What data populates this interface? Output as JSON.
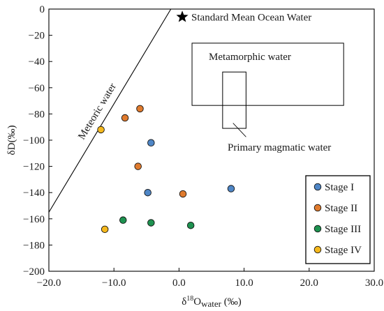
{
  "chart_data": {
    "type": "scatter",
    "xlim": [
      -20,
      30
    ],
    "ylim": [
      -200,
      0
    ],
    "x_ticks": [
      -20,
      -10,
      0,
      10,
      20,
      30
    ],
    "x_tick_labels": [
      "−20.0",
      "−10.0",
      "0.0",
      "10.0",
      "20.0",
      "30.0"
    ],
    "y_ticks": [
      0,
      -20,
      -40,
      -60,
      -80,
      -100,
      -120,
      -140,
      -160,
      -180,
      -200
    ],
    "y_tick_labels": [
      "0",
      "−20",
      "−40",
      "−60",
      "−80",
      "−100",
      "−120",
      "−140",
      "−160",
      "−180",
      "−200"
    ],
    "xlabel": {
      "prefix": "δ",
      "sup": "18",
      "main": "O",
      "sub": "water",
      "suffix": " (‰)"
    },
    "ylabel": "δD(‰)",
    "grid": false,
    "legend_position": "bottom-right",
    "series": [
      {
        "name": "Stage I",
        "color": "#4f86c6",
        "points": [
          {
            "x": -4.3,
            "y": -102
          },
          {
            "x": -4.8,
            "y": -140
          },
          {
            "x": 8.0,
            "y": -137
          }
        ]
      },
      {
        "name": "Stage II",
        "color": "#e07b2e",
        "points": [
          {
            "x": -8.3,
            "y": -83
          },
          {
            "x": -6.0,
            "y": -76
          },
          {
            "x": -6.3,
            "y": -120
          },
          {
            "x": 0.6,
            "y": -141
          }
        ]
      },
      {
        "name": "Stage III",
        "color": "#1e9250",
        "points": [
          {
            "x": -8.6,
            "y": -161
          },
          {
            "x": -4.3,
            "y": -163
          },
          {
            "x": 1.8,
            "y": -165
          }
        ]
      },
      {
        "name": "Stage IV",
        "color": "#f5b81d",
        "points": [
          {
            "x": -12.0,
            "y": -92
          },
          {
            "x": -11.4,
            "y": -168
          }
        ]
      }
    ],
    "meteoric_line": {
      "label": "Meteoric water",
      "points": [
        {
          "x": -20,
          "y": -155
        },
        {
          "x": -1.25,
          "y": 0
        }
      ]
    },
    "smow": {
      "label": "Standard Mean Ocean Water",
      "x": 0.5,
      "y": -6
    },
    "metamorphic_field": {
      "label": "Metamorphic water",
      "x": [
        2,
        25.3
      ],
      "y": [
        -26,
        -73.5
      ]
    },
    "magmatic_field": {
      "label": "Primary magmatic water",
      "x": [
        6.7,
        10.3
      ],
      "y": [
        -48,
        -91
      ],
      "leader_from": {
        "x": 8.3,
        "y": -87
      },
      "leader_to": {
        "x": 10.3,
        "y": -97.5
      }
    }
  }
}
